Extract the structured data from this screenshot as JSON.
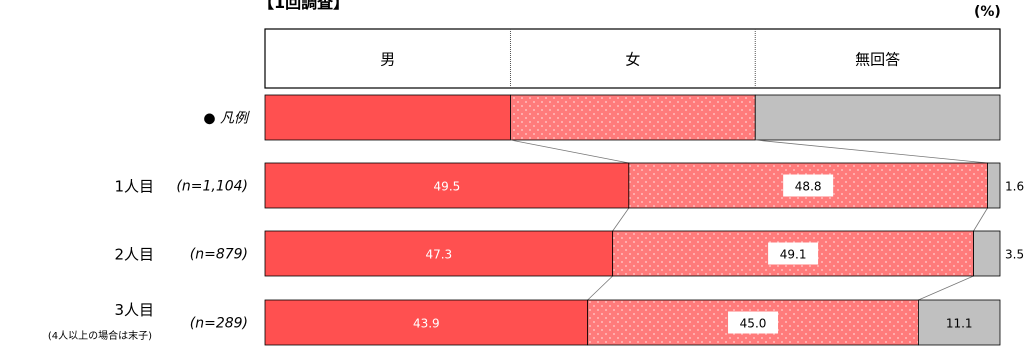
{
  "header_text": "【1回調査】",
  "unit": "(%)",
  "chart_data": {
    "type": "bar",
    "orientation": "horizontal",
    "stacked": "100%",
    "legend_header": [
      "男",
      "女",
      "無回答"
    ],
    "legend_row_label": "● 凡例",
    "series": [
      {
        "name": "男",
        "color": "#ff5050",
        "pattern": "solid"
      },
      {
        "name": "女",
        "color": "#ff7b7b",
        "pattern": "dots"
      },
      {
        "name": "無回答",
        "color": "#c0c0c0",
        "pattern": "solid"
      }
    ],
    "categories": [
      {
        "label": "1人目",
        "sublabel": "",
        "n": "(n=1,104)",
        "values": [
          49.5,
          48.8,
          1.6
        ]
      },
      {
        "label": "2人目",
        "sublabel": "",
        "n": "(n=879)",
        "values": [
          47.3,
          49.1,
          3.5
        ]
      },
      {
        "label": "3人目",
        "sublabel": "(4人以上の場合は末子)",
        "n": "(n=289)",
        "values": [
          43.9,
          45.0,
          11.1
        ]
      }
    ],
    "value_labels": [
      [
        "49.5",
        "48.8",
        "1.6"
      ],
      [
        "47.3",
        "49.1",
        "3.5"
      ],
      [
        "43.9",
        "45.0",
        "11.1"
      ]
    ],
    "xlim": [
      0,
      100
    ]
  }
}
